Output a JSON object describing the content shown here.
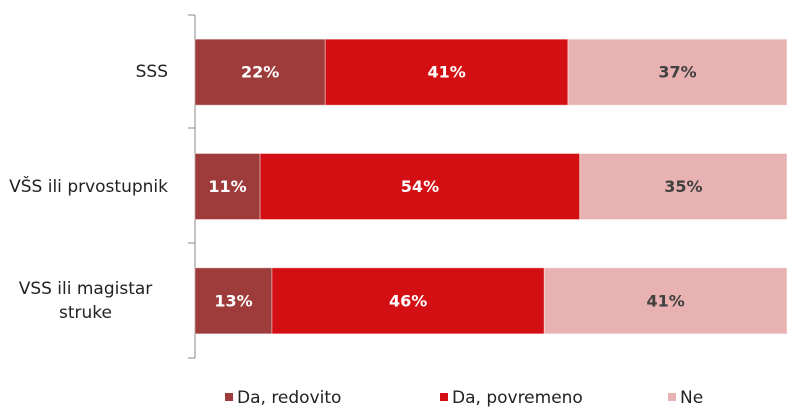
{
  "chart_data": {
    "type": "stacked-barh",
    "categories": [
      "SSS",
      "VŠS ili prvostupnik",
      "VSS ili magistar struke"
    ],
    "series": [
      {
        "name": "Da, redovito",
        "color": "#9e3b3b",
        "text_color": "#ffffff",
        "values": [
          22,
          11,
          13
        ],
        "value_labels": [
          "22%",
          "11%",
          "13%"
        ]
      },
      {
        "name": "Da, povremeno",
        "color": "#d40f14",
        "text_color": "#ffffff",
        "values": [
          41,
          54,
          46
        ],
        "value_labels": [
          "41%",
          "54%",
          "46%"
        ]
      },
      {
        "name": "Ne",
        "color": "#e8b2b2",
        "text_color": "#404040",
        "values": [
          37,
          35,
          41
        ],
        "value_labels": [
          "37%",
          "35%",
          "41%"
        ]
      }
    ],
    "xlim": [
      0,
      100
    ],
    "legend": "bottom"
  }
}
